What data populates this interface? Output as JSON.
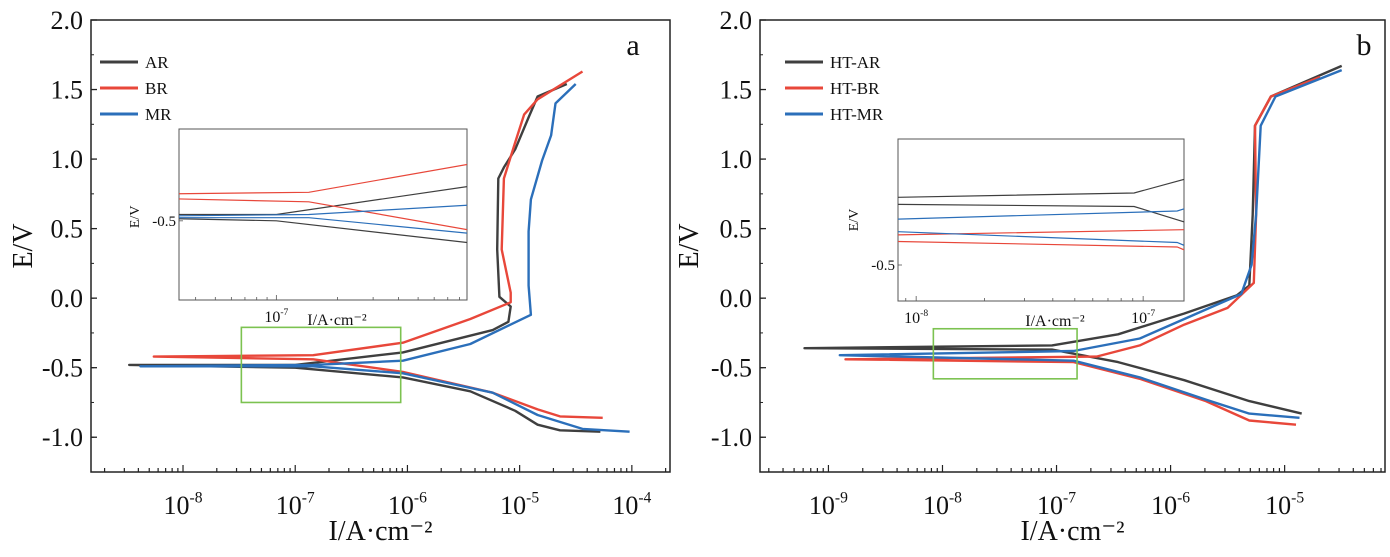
{
  "colors": {
    "AR": "#3f3f3f",
    "BR": "#e8473a",
    "MR": "#2b6fba",
    "zoom_box": "#7cc250",
    "axis": "#222222"
  },
  "chart_data": [
    {
      "type": "line",
      "panel_label": "a",
      "xscale": "log",
      "xlabel": "I/A·cm⁻²",
      "ylabel": "E/V",
      "xlim_log10": [
        -8.82,
        -3.66
      ],
      "ylim": [
        -1.25,
        2.0
      ],
      "xtick_exponents": [
        -8,
        -7,
        -6,
        -5,
        -4
      ],
      "yticks": [
        "-1.0",
        "-0.5",
        "0.0",
        "0.5",
        "1.0",
        "1.5",
        "2.0"
      ],
      "legend_position": "top-left",
      "series": [
        {
          "name": "AR",
          "color_key": "AR",
          "points_log10I_E": [
            [
              -4.28,
              -0.96
            ],
            [
              -4.64,
              -0.95
            ],
            [
              -4.84,
              -0.91
            ],
            [
              -5.04,
              -0.81
            ],
            [
              -5.44,
              -0.67
            ],
            [
              -6.04,
              -0.57
            ],
            [
              -7.0,
              -0.5
            ],
            [
              -8.48,
              -0.48
            ],
            [
              -7.0,
              -0.48
            ],
            [
              -6.04,
              -0.39
            ],
            [
              -5.24,
              -0.23
            ],
            [
              -5.1,
              -0.17
            ],
            [
              -5.08,
              -0.06
            ],
            [
              -5.18,
              0.01
            ],
            [
              -5.2,
              0.35
            ],
            [
              -5.19,
              0.86
            ],
            [
              -5.14,
              0.94
            ],
            [
              -5.04,
              1.07
            ],
            [
              -4.92,
              1.3
            ],
            [
              -4.84,
              1.45
            ],
            [
              -4.58,
              1.54
            ]
          ]
        },
        {
          "name": "BR",
          "color_key": "BR",
          "points_log10I_E": [
            [
              -4.26,
              -0.86
            ],
            [
              -4.64,
              -0.85
            ],
            [
              -4.84,
              -0.8
            ],
            [
              -5.24,
              -0.68
            ],
            [
              -6.04,
              -0.53
            ],
            [
              -6.84,
              -0.44
            ],
            [
              -8.26,
              -0.42
            ],
            [
              -6.84,
              -0.41
            ],
            [
              -6.04,
              -0.32
            ],
            [
              -5.44,
              -0.15
            ],
            [
              -5.08,
              -0.03
            ],
            [
              -5.08,
              0.04
            ],
            [
              -5.16,
              0.35
            ],
            [
              -5.14,
              0.86
            ],
            [
              -5.04,
              1.12
            ],
            [
              -4.96,
              1.32
            ],
            [
              -4.84,
              1.43
            ],
            [
              -4.44,
              1.63
            ]
          ]
        },
        {
          "name": "MR",
          "color_key": "MR",
          "points_log10I_E": [
            [
              -4.02,
              -0.96
            ],
            [
              -4.44,
              -0.94
            ],
            [
              -4.84,
              -0.84
            ],
            [
              -5.24,
              -0.68
            ],
            [
              -6.04,
              -0.54
            ],
            [
              -6.84,
              -0.49
            ],
            [
              -8.38,
              -0.49
            ],
            [
              -6.84,
              -0.48
            ],
            [
              -6.04,
              -0.45
            ],
            [
              -5.44,
              -0.33
            ],
            [
              -4.9,
              -0.12
            ],
            [
              -4.92,
              0.09
            ],
            [
              -4.92,
              0.48
            ],
            [
              -4.9,
              0.71
            ],
            [
              -4.8,
              0.99
            ],
            [
              -4.72,
              1.17
            ],
            [
              -4.68,
              1.4
            ],
            [
              -4.5,
              1.54
            ]
          ]
        }
      ],
      "zoom_region": {
        "xlim_log10": [
          -7.48,
          -6.06
        ],
        "ylim": [
          -0.75,
          -0.21
        ]
      },
      "inset": {
        "xlabel": "I/A·cm⁻²",
        "ylabel": "E/V",
        "xtick_exponents": [
          -7
        ],
        "yticks": [
          "-0.5"
        ]
      }
    },
    {
      "type": "line",
      "panel_label": "b",
      "xscale": "log",
      "xlabel": "I/A·cm⁻²",
      "ylabel": "E/V",
      "xlim_log10": [
        -9.6,
        -4.12
      ],
      "ylim": [
        -1.25,
        2.0
      ],
      "xtick_exponents": [
        -9,
        -8,
        -7,
        -6,
        -5
      ],
      "yticks": [
        "-1.0",
        "-0.5",
        "0.0",
        "0.5",
        "1.0",
        "1.5",
        "2.0"
      ],
      "legend_position": "top-left",
      "series": [
        {
          "name": "HT-AR",
          "color_key": "AR",
          "points_log10I_E": [
            [
              -4.85,
              -0.83
            ],
            [
              -5.31,
              -0.74
            ],
            [
              -5.88,
              -0.59
            ],
            [
              -6.46,
              -0.46
            ],
            [
              -7.04,
              -0.37
            ],
            [
              -9.21,
              -0.36
            ],
            [
              -7.04,
              -0.34
            ],
            [
              -6.46,
              -0.26
            ],
            [
              -5.88,
              -0.11
            ],
            [
              -5.42,
              0.02
            ],
            [
              -5.31,
              0.09
            ],
            [
              -5.28,
              0.6
            ],
            [
              -5.26,
              1.24
            ],
            [
              -5.12,
              1.45
            ],
            [
              -4.5,
              1.67
            ]
          ]
        },
        {
          "name": "HT-BR",
          "color_key": "BR",
          "points_log10I_E": [
            [
              -4.9,
              -0.91
            ],
            [
              -5.31,
              -0.88
            ],
            [
              -5.69,
              -0.74
            ],
            [
              -6.27,
              -0.58
            ],
            [
              -6.85,
              -0.46
            ],
            [
              -8.85,
              -0.44
            ],
            [
              -6.65,
              -0.42
            ],
            [
              -6.27,
              -0.34
            ],
            [
              -5.88,
              -0.19
            ],
            [
              -5.5,
              -0.07
            ],
            [
              -5.27,
              0.11
            ],
            [
              -5.25,
              0.6
            ],
            [
              -5.26,
              1.24
            ],
            [
              -5.12,
              1.45
            ],
            [
              -4.69,
              1.59
            ]
          ]
        },
        {
          "name": "HT-MR",
          "color_key": "MR",
          "points_log10I_E": [
            [
              -4.87,
              -0.86
            ],
            [
              -5.31,
              -0.83
            ],
            [
              -5.69,
              -0.73
            ],
            [
              -6.27,
              -0.57
            ],
            [
              -6.85,
              -0.45
            ],
            [
              -8.9,
              -0.41
            ],
            [
              -6.85,
              -0.38
            ],
            [
              -6.27,
              -0.29
            ],
            [
              -5.88,
              -0.15
            ],
            [
              -5.38,
              0.03
            ],
            [
              -5.29,
              0.24
            ],
            [
              -5.25,
              0.6
            ],
            [
              -5.21,
              1.24
            ],
            [
              -5.08,
              1.45
            ],
            [
              -4.5,
              1.64
            ]
          ]
        }
      ],
      "zoom_region": {
        "xlim_log10": [
          -8.08,
          -6.82
        ],
        "ylim": [
          -0.58,
          -0.22
        ]
      },
      "inset": {
        "xlabel": "I/A·cm⁻²",
        "ylabel": "E/V",
        "xtick_exponents": [
          -8,
          -7
        ],
        "yticks": [
          "-0.5"
        ]
      }
    }
  ]
}
